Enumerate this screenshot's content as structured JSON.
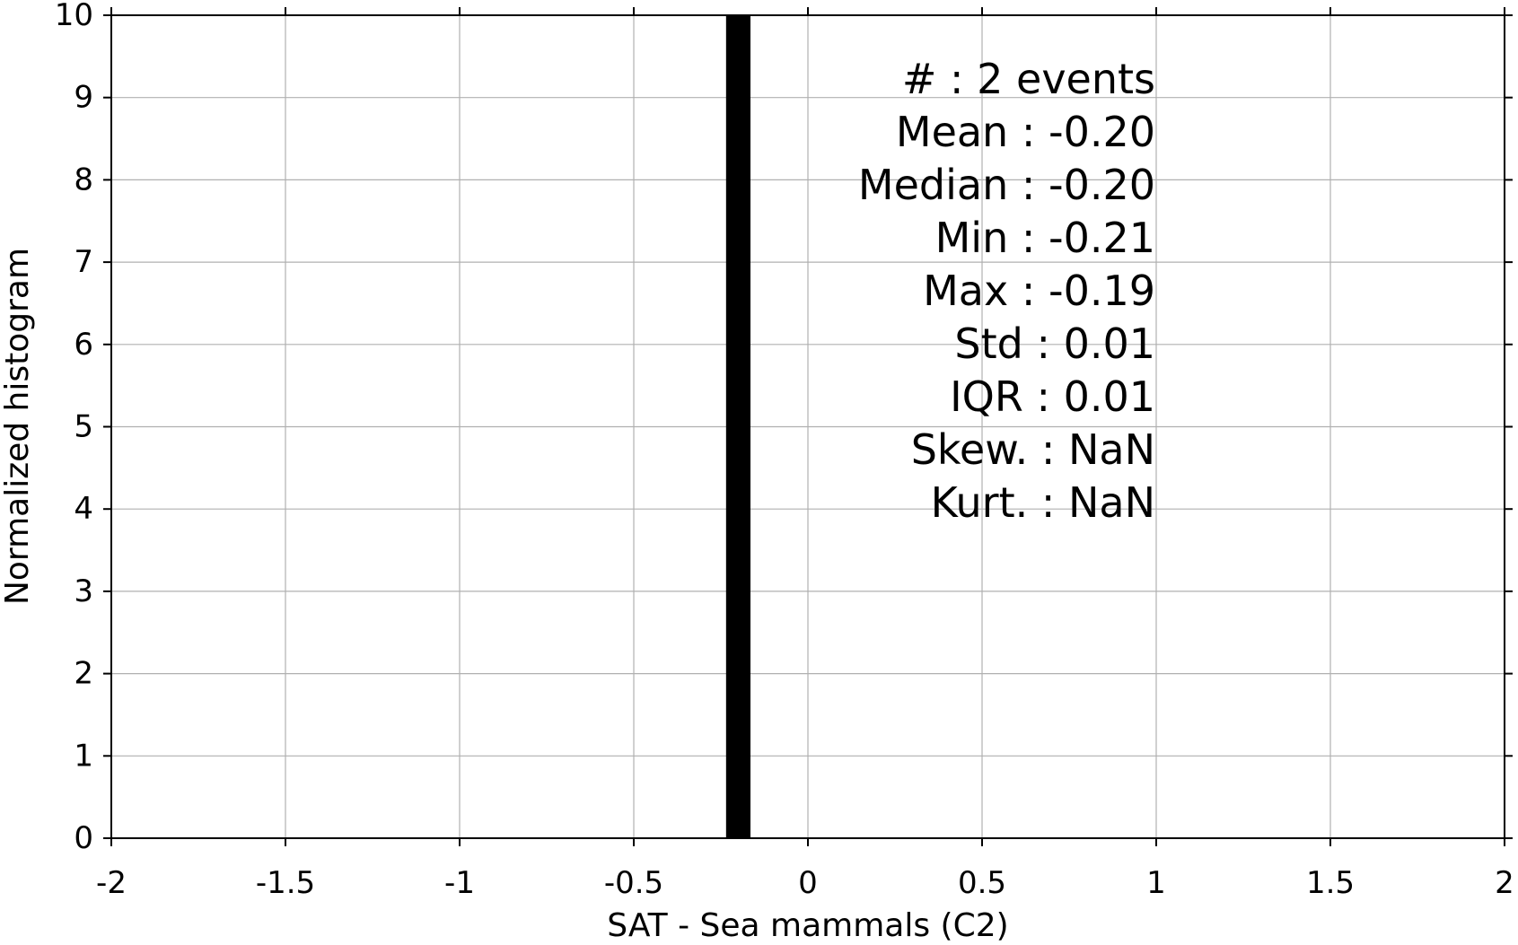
{
  "chart_data": {
    "type": "bar",
    "title": "",
    "xlabel": "SAT - Sea mammals (C2)",
    "ylabel": "Normalized histogram",
    "xlim": [
      -2,
      2
    ],
    "ylim": [
      0,
      10
    ],
    "grid": true,
    "bins": [
      {
        "x0": -0.235,
        "x1": -0.165,
        "value": 10
      }
    ],
    "xticks": [
      {
        "value": -2,
        "label": "-2"
      },
      {
        "value": -1.5,
        "label": "-1.5"
      },
      {
        "value": -1,
        "label": "-1"
      },
      {
        "value": -0.5,
        "label": "-0.5"
      },
      {
        "value": 0,
        "label": "0"
      },
      {
        "value": 0.5,
        "label": "0.5"
      },
      {
        "value": 1,
        "label": "1"
      },
      {
        "value": 1.5,
        "label": "1.5"
      },
      {
        "value": 2,
        "label": "2"
      }
    ],
    "yticks": [
      {
        "value": 0,
        "label": "0"
      },
      {
        "value": 1,
        "label": "1"
      },
      {
        "value": 2,
        "label": "2"
      },
      {
        "value": 3,
        "label": "3"
      },
      {
        "value": 4,
        "label": "4"
      },
      {
        "value": 5,
        "label": "5"
      },
      {
        "value": 6,
        "label": "6"
      },
      {
        "value": 7,
        "label": "7"
      },
      {
        "value": 8,
        "label": "8"
      },
      {
        "value": 9,
        "label": "9"
      },
      {
        "value": 10,
        "label": "10"
      }
    ],
    "stats": [
      {
        "label": "#",
        "sep": " : ",
        "value": "2 events"
      },
      {
        "label": "Mean",
        "sep": " : ",
        "value": "-0.20"
      },
      {
        "label": "Median",
        "sep": " : ",
        "value": "-0.20"
      },
      {
        "label": "Min",
        "sep": " : ",
        "value": "-0.21"
      },
      {
        "label": "Max",
        "sep": " : ",
        "value": "-0.19"
      },
      {
        "label": "Std",
        "sep": " : ",
        "value": "0.01"
      },
      {
        "label": "IQR",
        "sep": " : ",
        "value": "0.01"
      },
      {
        "label": "Skew.",
        "sep": " : ",
        "value": "NaN"
      },
      {
        "label": "Kurt.",
        "sep": " : ",
        "value": "NaN"
      }
    ],
    "colors": {
      "bar": "#000000",
      "grid": "#b0b0b0",
      "axis": "#000000"
    }
  }
}
